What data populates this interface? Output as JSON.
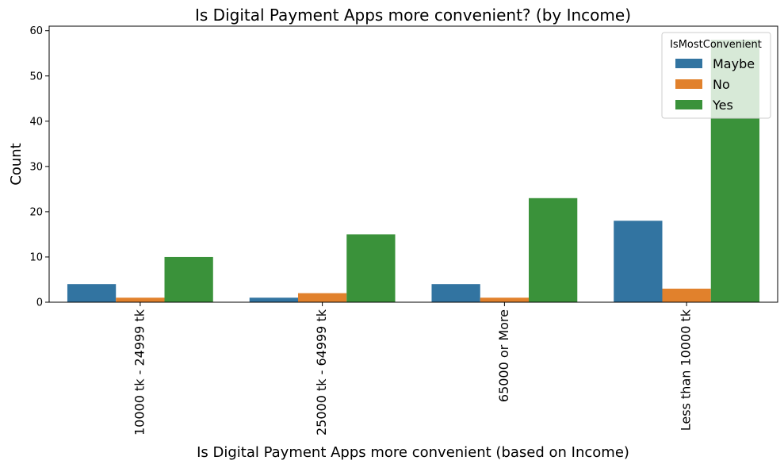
{
  "chart_data": {
    "type": "bar",
    "title": "Is Digital Payment Apps more convenient? (by Income)",
    "xlabel": "Is Digital Payment Apps more convenient (based on Income)",
    "ylabel": "Count",
    "categories": [
      "10000 tk - 24999 tk",
      "25000 tk - 64999 tk",
      "65000 or More",
      "Less than 10000 tk"
    ],
    "series": [
      {
        "name": "Maybe",
        "color": "#3274a1",
        "values": [
          4,
          1,
          4,
          18
        ]
      },
      {
        "name": "No",
        "color": "#e1812c",
        "values": [
          1,
          2,
          1,
          3
        ]
      },
      {
        "name": "Yes",
        "color": "#3a923a",
        "values": [
          10,
          15,
          23,
          58
        ]
      }
    ],
    "ylim": [
      0,
      61
    ],
    "yticks": [
      0,
      10,
      20,
      30,
      40,
      50,
      60
    ],
    "legend": {
      "title": "IsMostConvenient",
      "placement": "top-right"
    },
    "grid": false
  }
}
